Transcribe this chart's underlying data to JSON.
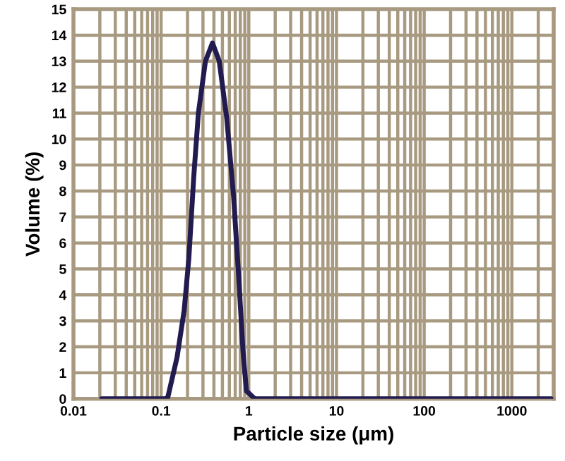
{
  "chart_data": {
    "type": "line",
    "xlabel": "Particle size (μm)",
    "ylabel": "Volume (%)",
    "log": "x",
    "xlim": [
      0.01,
      3000
    ],
    "xticks": [
      0.01,
      0.1,
      1,
      10,
      100,
      1000
    ],
    "ylim": [
      0,
      15
    ],
    "yticks": [
      0,
      1,
      2,
      3,
      4,
      5,
      6,
      7,
      8,
      9,
      10,
      11,
      12,
      13,
      14,
      15
    ],
    "grid": true,
    "legend": false,
    "marker": "none",
    "line_style": "solid",
    "series": [
      {
        "color": "#221b4f",
        "x": [
          0.021,
          0.05,
          0.11,
          0.119,
          0.152,
          0.183,
          0.207,
          0.235,
          0.266,
          0.32,
          0.385,
          0.46,
          0.56,
          0.67,
          0.76,
          0.86,
          0.94,
          1.17,
          10,
          100,
          1000,
          2800
        ],
        "values": [
          0,
          0,
          0,
          0.05,
          1.6,
          3.4,
          5.4,
          8.5,
          11,
          13,
          13.7,
          13,
          10.8,
          7.8,
          4.9,
          1.8,
          0.3,
          0,
          0,
          0,
          0,
          0
        ]
      }
    ]
  }
}
